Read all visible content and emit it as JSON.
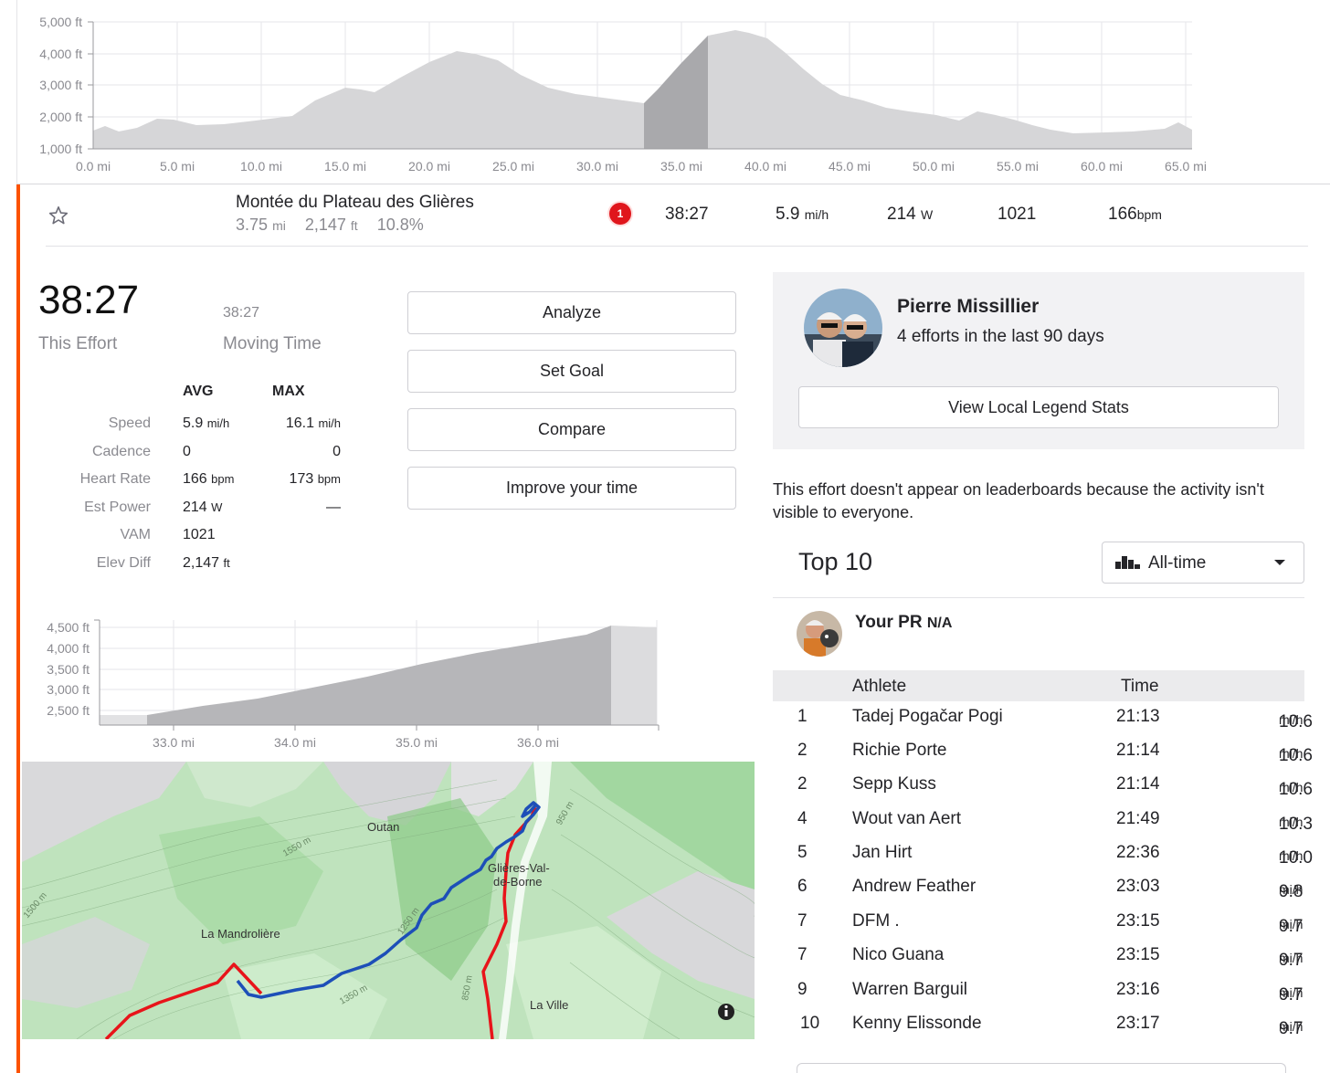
{
  "profile_chart": {
    "y_ticks": [
      "5,000 ft",
      "4,000 ft",
      "3,000 ft",
      "2,000 ft",
      "1,000 ft"
    ],
    "x_ticks": [
      "0.0 mi",
      "5.0 mi",
      "10.0 mi",
      "15.0 mi",
      "20.0 mi",
      "25.0 mi",
      "30.0 mi",
      "35.0 mi",
      "40.0 mi",
      "45.0 mi",
      "50.0 mi",
      "55.0 mi",
      "60.0 mi",
      "65.0 mi"
    ]
  },
  "segment": {
    "name": "Montée du Plateau des Glières",
    "distance": "3.75",
    "distance_unit": "mi",
    "elevation": "2,147",
    "elevation_unit": "ft",
    "grade": "10.8%",
    "badge": "1",
    "time": "38:27",
    "speed": "5.9",
    "speed_unit": "mi/h",
    "power": "214",
    "power_unit": "W",
    "vam": "1021",
    "heart_rate": "166",
    "heart_rate_unit": "bpm"
  },
  "effort": {
    "time": "38:27",
    "time_label": "This Effort",
    "moving_time": "38:27",
    "moving_label": "Moving Time"
  },
  "stats": {
    "avg_header": "AVG",
    "max_header": "MAX",
    "rows": [
      {
        "label": "Speed",
        "avg": "5.9",
        "avg_unit": "mi/h",
        "max": "16.1",
        "max_unit": "mi/h"
      },
      {
        "label": "Cadence",
        "avg": "0",
        "avg_unit": "",
        "max": "0",
        "max_unit": ""
      },
      {
        "label": "Heart Rate",
        "avg": "166",
        "avg_unit": "bpm",
        "max": "173",
        "max_unit": "bpm"
      },
      {
        "label": "Est Power",
        "avg": "214",
        "avg_unit": "W",
        "max": "—",
        "max_unit": ""
      },
      {
        "label": "VAM",
        "avg": "1021",
        "avg_unit": "",
        "max": "",
        "max_unit": ""
      },
      {
        "label": "Elev Diff",
        "avg": "2,147",
        "avg_unit": "ft",
        "max": "",
        "max_unit": ""
      }
    ]
  },
  "actions": {
    "analyze": "Analyze",
    "set_goal": "Set Goal",
    "compare": "Compare",
    "improve": "Improve your time"
  },
  "segment_chart": {
    "y_ticks": [
      "4,500 ft",
      "4,000 ft",
      "3,500 ft",
      "3,000 ft",
      "2,500 ft"
    ],
    "x_ticks": [
      "33.0 mi",
      "34.0 mi",
      "35.0 mi",
      "36.0 mi"
    ]
  },
  "map": {
    "labels": {
      "outan": "Outan",
      "glieres": "Glières-Val-",
      "glieres2": "de-Borne",
      "mandroliere": "La Mandrolière",
      "laville": "La Ville",
      "c1550": "1550 m",
      "c1500": "1500 m",
      "c1250": "1250 m",
      "c1350": "1350 m",
      "c850": "850 m",
      "c950": "950 m"
    },
    "info_icon": "info-icon"
  },
  "local_legend": {
    "name": "Pierre Missillier",
    "subtitle": "4 efforts in the last 90 days",
    "button": "View Local Legend Stats"
  },
  "notice": "This effort doesn't appear on leaderboards because the activity isn't visible to everyone.",
  "leaderboard": {
    "title": "Top 10",
    "filter": "All-time",
    "your_pr_label": "Your PR",
    "your_pr_value": "N/A",
    "athlete_header": "Athlete",
    "time_header": "Time",
    "speed_unit": "mi/h",
    "rows": [
      {
        "rank": "1",
        "athlete": "Tadej Pogačar Pogi",
        "time": "21:13",
        "speed": "10.6"
      },
      {
        "rank": "2",
        "athlete": "Richie Porte",
        "time": "21:14",
        "speed": "10.6"
      },
      {
        "rank": "2",
        "athlete": "Sepp Kuss",
        "time": "21:14",
        "speed": "10.6"
      },
      {
        "rank": "4",
        "athlete": "Wout van Aert",
        "time": "21:49",
        "speed": "10.3"
      },
      {
        "rank": "5",
        "athlete": "Jan Hirt",
        "time": "22:36",
        "speed": "10.0"
      },
      {
        "rank": "6",
        "athlete": "Andrew Feather",
        "time": "23:03",
        "speed": "9.8"
      },
      {
        "rank": "7",
        "athlete": "DFM .",
        "time": "23:15",
        "speed": "9.7"
      },
      {
        "rank": "7",
        "athlete": "Nico Guana",
        "time": "23:15",
        "speed": "9.7"
      },
      {
        "rank": "9",
        "athlete": "Warren Barguil",
        "time": "23:16",
        "speed": "9.7"
      },
      {
        "rank": "10",
        "athlete": "Kenny Elissonde",
        "time": "23:17",
        "speed": "9.7"
      }
    ]
  }
}
